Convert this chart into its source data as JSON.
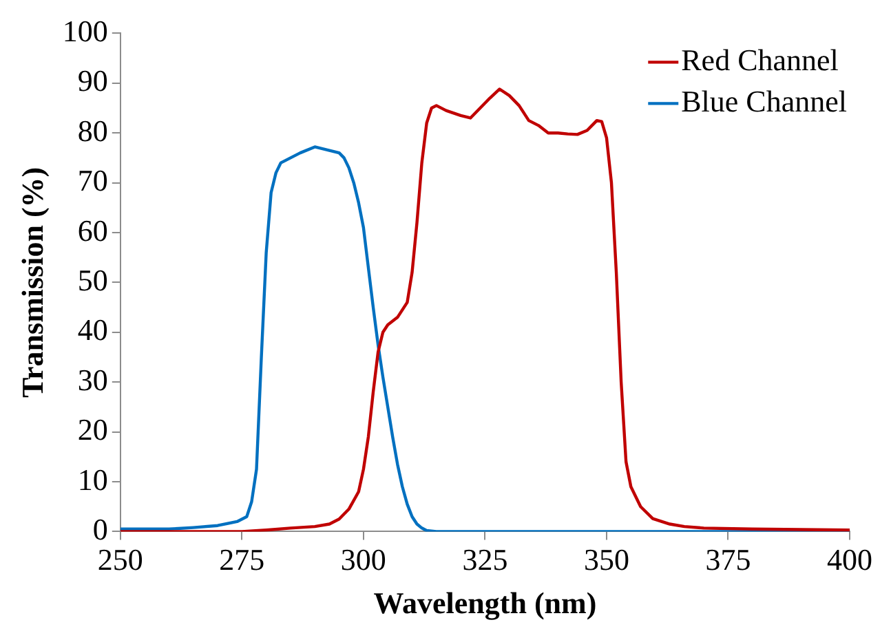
{
  "chart_data": {
    "type": "line",
    "xlabel": "Wavelength (nm)",
    "ylabel": "Transmission (%)",
    "xlim": [
      250,
      400
    ],
    "xticks": [
      250,
      275,
      300,
      325,
      350,
      375,
      400
    ],
    "ylim": [
      0,
      100
    ],
    "yticks": [
      0,
      10,
      20,
      30,
      40,
      50,
      60,
      70,
      80,
      90,
      100
    ],
    "grid": false,
    "legend": "top right",
    "marker": "none",
    "line_style": "solid",
    "series": [
      {
        "name": "Red Channel",
        "color": "#c00000",
        "x": [
          250,
          275,
          280,
          285,
          290,
          293,
          295,
          297,
          299,
          300,
          301,
          302,
          303,
          304,
          305,
          307,
          309,
          310,
          311,
          312,
          313,
          314,
          315,
          317,
          320,
          322,
          324,
          326,
          328,
          330,
          332,
          334,
          336,
          338,
          340,
          342,
          344,
          346,
          348,
          349,
          350,
          351,
          352,
          353,
          354,
          355,
          357,
          359.5,
          363,
          366,
          370,
          380,
          400
        ],
        "values": [
          0,
          0,
          0.3,
          0.7,
          1,
          1.5,
          2.5,
          4.5,
          8,
          12.5,
          19,
          28,
          36,
          40,
          41.5,
          43,
          46,
          52,
          62,
          74,
          82,
          85,
          85.5,
          84.5,
          83.5,
          83,
          85,
          87,
          88.8,
          87.5,
          85.5,
          82.5,
          81.5,
          80,
          80,
          79.8,
          79.7,
          80.5,
          82.5,
          82.3,
          79,
          70,
          52,
          30,
          14,
          9,
          5,
          2.6,
          1.5,
          1,
          0.7,
          0.5,
          0.3
        ]
      },
      {
        "name": "Blue Channel",
        "color": "#0070c0",
        "x": [
          250,
          260,
          265,
          270,
          274,
          276,
          277,
          278,
          279,
          280,
          281,
          282,
          283,
          285,
          287,
          290,
          293,
          295,
          296,
          297,
          298,
          299,
          300,
          301,
          302,
          303,
          304,
          305,
          306,
          307,
          308,
          309,
          310,
          311,
          312,
          313,
          315,
          400
        ],
        "values": [
          0.5,
          0.5,
          0.8,
          1.2,
          2,
          3,
          6,
          12.5,
          35,
          56,
          68,
          72,
          74,
          75,
          76,
          77.2,
          76.5,
          76,
          75,
          73,
          70,
          66,
          61,
          53,
          45,
          37.5,
          31,
          25,
          19,
          13.5,
          9,
          5.5,
          3,
          1.5,
          0.7,
          0.2,
          0,
          0
        ]
      }
    ]
  }
}
